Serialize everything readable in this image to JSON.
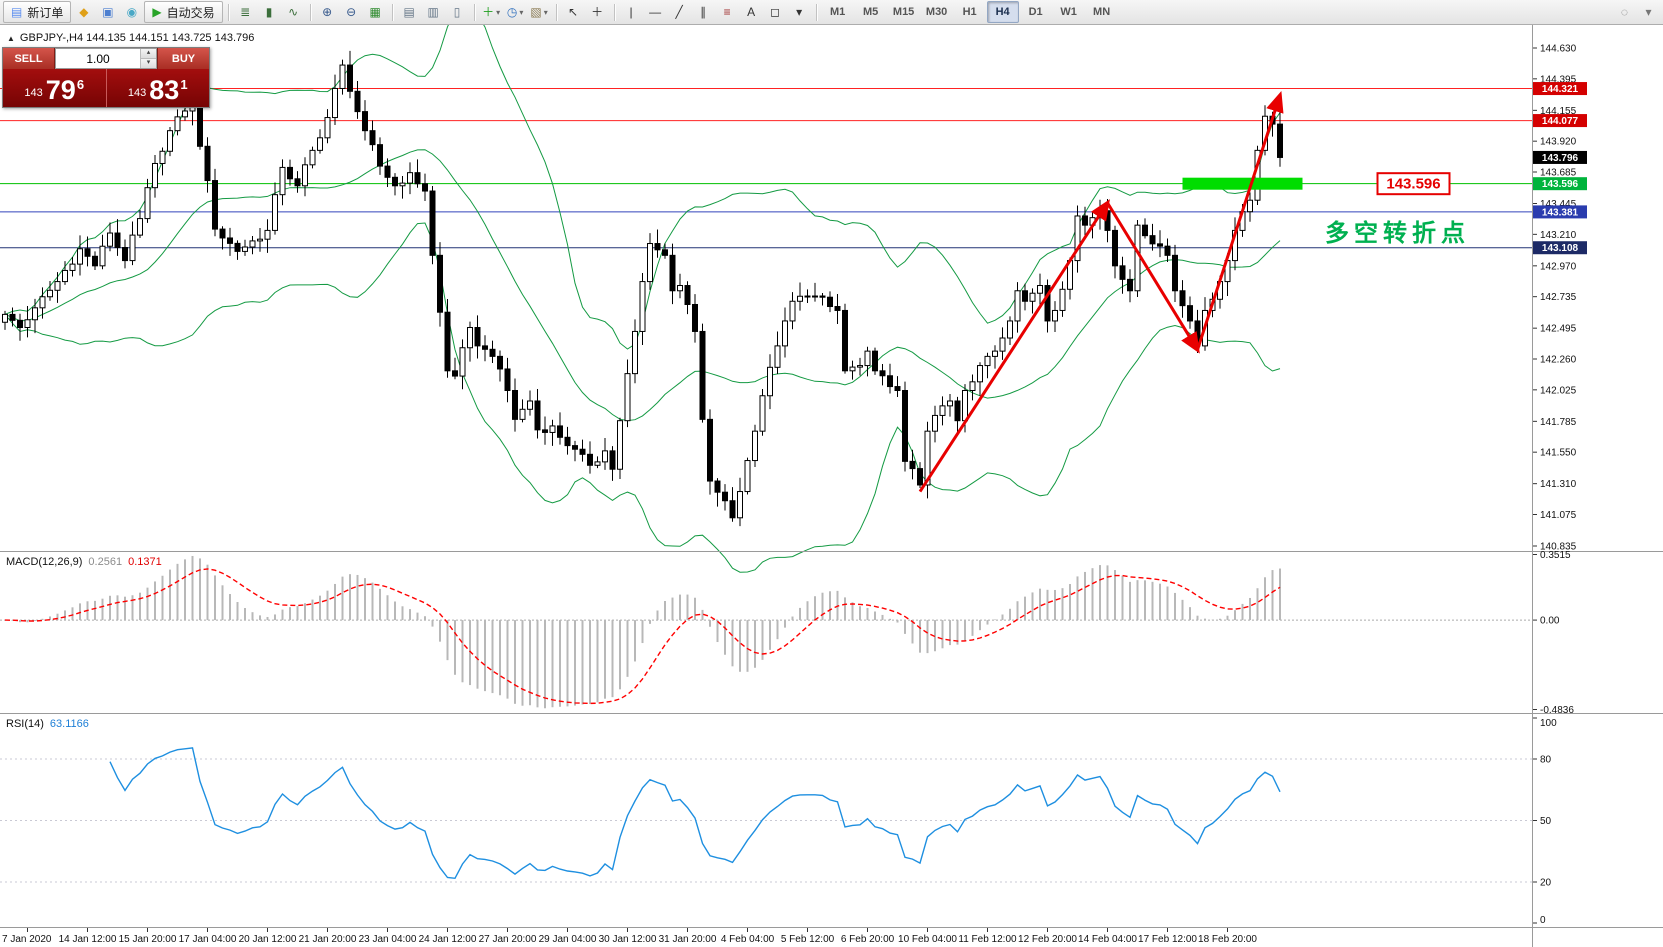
{
  "toolbar": {
    "active_timeframe": "H4",
    "groups": [
      [
        {
          "kind": "button",
          "name": "new-order-button",
          "glyph": "▤",
          "glyph_color": "#5b8def",
          "label": "新订单"
        },
        {
          "kind": "icon",
          "name": "metaeditor-icon",
          "glyph": "◆",
          "color": "#dfa018"
        },
        {
          "kind": "icon",
          "name": "market-watch-icon",
          "glyph": "▣",
          "color": "#4d7fd0"
        },
        {
          "kind": "icon",
          "name": "navigator-icon",
          "glyph": "◉",
          "color": "#49a8c6"
        },
        {
          "kind": "button",
          "name": "auto-trading-button",
          "glyph": "▶",
          "glyph_color": "#28a428",
          "label": "自动交易"
        }
      ],
      [
        {
          "kind": "icon",
          "name": "bar-chart-type-icon",
          "glyph": "≣",
          "color": "#3b6e3b"
        },
        {
          "kind": "icon",
          "name": "candlestick-chart-type-icon",
          "glyph": "▮",
          "color": "#3b6e3b"
        },
        {
          "kind": "icon",
          "name": "line-chart-type-icon",
          "glyph": "∿",
          "color": "#3b6e3b"
        }
      ],
      [
        {
          "kind": "icon",
          "name": "zoom-in-icon",
          "glyph": "⊕",
          "color": "#36598c"
        },
        {
          "kind": "icon",
          "name": "zoom-out-icon",
          "glyph": "⊖",
          "color": "#36598c"
        },
        {
          "kind": "icon",
          "name": "auto-arrange-icon",
          "glyph": "▦",
          "color": "#2e8b2e"
        }
      ],
      [
        {
          "kind": "icon",
          "name": "cascade-windows-icon",
          "glyph": "▤",
          "color": "#667788"
        },
        {
          "kind": "icon",
          "name": "tile-horizontally-icon",
          "glyph": "▥",
          "color": "#667788"
        },
        {
          "kind": "icon",
          "name": "tile-vertically-icon",
          "glyph": "▯",
          "color": "#667788"
        }
      ],
      [
        {
          "kind": "icon",
          "name": "add-indicator-icon",
          "glyph": "＋",
          "color": "#1f9e1f",
          "caret": true
        },
        {
          "kind": "icon",
          "name": "period-icon",
          "glyph": "◷",
          "color": "#2f6fbd",
          "caret": true
        },
        {
          "kind": "icon",
          "name": "template-icon",
          "glyph": "▧",
          "color": "#8a7a52",
          "caret": true
        }
      ],
      [
        {
          "kind": "icon",
          "name": "cursor-icon",
          "glyph": "↖",
          "color": "#333333"
        },
        {
          "kind": "icon",
          "name": "crosshair-icon",
          "glyph": "＋",
          "color": "#333333"
        }
      ],
      [
        {
          "kind": "icon",
          "name": "vertical-line-icon",
          "glyph": "|",
          "color": "#333333"
        },
        {
          "kind": "icon",
          "name": "horizontal-line-icon",
          "glyph": "—",
          "color": "#333333"
        },
        {
          "kind": "icon",
          "name": "trendline-icon",
          "glyph": "╱",
          "color": "#333333"
        },
        {
          "kind": "icon",
          "name": "channel-icon",
          "glyph": "∥",
          "color": "#333333"
        },
        {
          "kind": "icon",
          "name": "fibonacci-icon",
          "glyph": "≡",
          "color": "#a03030"
        },
        {
          "kind": "icon",
          "name": "text-tool-icon",
          "glyph": "A",
          "color": "#333333"
        },
        {
          "kind": "icon",
          "name": "arrows-tool-icon",
          "glyph": "◻",
          "color": "#333333"
        },
        {
          "kind": "icon",
          "name": "shapes-dropdown-icon",
          "glyph": "▾",
          "color": "#333333"
        }
      ],
      [
        {
          "kind": "tf",
          "name": "timeframe-m1-button",
          "label": "M1"
        },
        {
          "kind": "tf",
          "name": "timeframe-m5-button",
          "label": "M5"
        },
        {
          "kind": "tf",
          "name": "timeframe-m15-button",
          "label": "M15"
        },
        {
          "kind": "tf",
          "name": "timeframe-m30-button",
          "label": "M30"
        },
        {
          "kind": "tf",
          "name": "timeframe-h1-button",
          "label": "H1"
        },
        {
          "kind": "tf",
          "name": "timeframe-h4-button",
          "label": "H4"
        },
        {
          "kind": "tf",
          "name": "timeframe-d1-button",
          "label": "D1"
        },
        {
          "kind": "tf",
          "name": "timeframe-w1-button",
          "label": "W1"
        },
        {
          "kind": "tf",
          "name": "timeframe-mn-button",
          "label": "MN"
        }
      ],
      [
        {
          "kind": "icon",
          "name": "help-search-icon",
          "glyph": "◌",
          "color": "#777777"
        },
        {
          "kind": "icon",
          "name": "toolbar-options-icon",
          "glyph": "▾",
          "color": "#777777"
        }
      ]
    ]
  },
  "chart_header": {
    "marker": "▲",
    "title_text": "GBPJPY-,H4  144.135 144.151 143.725 143.796"
  },
  "one_click": {
    "sell_label": "SELL",
    "buy_label": "BUY",
    "volume": "1.00",
    "bid_int": "143",
    "bid_big": "79",
    "bid_sup": "6",
    "ask_int": "143",
    "ask_big": "83",
    "ask_sup": "1"
  },
  "chart_data": [
    {
      "type": "candlestick",
      "symbol": "GBPJPY-",
      "timeframe": "H4",
      "ohlc_current": {
        "open": "144.135",
        "high": "144.151",
        "low": "143.725",
        "close": "143.796"
      },
      "bars_count": 171,
      "label_start_bar": 3,
      "label_every": 8,
      "price_axis": [
        "144.630",
        "144.395",
        "144.155",
        "143.920",
        "143.685",
        "143.445",
        "143.210",
        "142.970",
        "142.735",
        "142.495",
        "142.260",
        "142.025",
        "141.785",
        "141.550",
        "141.310",
        "141.075",
        "140.835"
      ],
      "time_axis": [
        "7 Jan 2020",
        "14 Jan 12:00",
        "15 Jan 20:00",
        "17 Jan 04:00",
        "20 Jan 12:00",
        "21 Jan 20:00",
        "23 Jan 04:00",
        "24 Jan 12:00",
        "27 Jan 20:00",
        "29 Jan 04:00",
        "30 Jan 12:00",
        "31 Jan 20:00",
        "4 Feb 04:00",
        "5 Feb 12:00",
        "6 Feb 20:00",
        "10 Feb 04:00",
        "11 Feb 12:00",
        "12 Feb 20:00",
        "14 Feb 04:00",
        "17 Feb 12:00",
        "18 Feb 20:00"
      ],
      "bollinger": {
        "period": 20,
        "deviation": 2,
        "color": "#149a43"
      },
      "close_waypoints": [
        [
          0,
          142.6
        ],
        [
          2,
          142.5
        ],
        [
          4,
          142.65
        ],
        [
          7,
          142.85
        ],
        [
          10,
          143.1
        ],
        [
          12,
          142.97
        ],
        [
          14,
          143.22
        ],
        [
          16,
          143.01
        ],
        [
          18,
          143.33
        ],
        [
          20,
          143.75
        ],
        [
          22,
          144.0
        ],
        [
          24,
          144.15
        ],
        [
          25,
          144.19
        ],
        [
          27,
          143.62
        ],
        [
          28,
          143.25
        ],
        [
          31,
          143.08
        ],
        [
          33,
          143.16
        ],
        [
          35,
          143.24
        ],
        [
          37,
          143.72
        ],
        [
          39,
          143.58
        ],
        [
          41,
          143.85
        ],
        [
          43,
          144.1
        ],
        [
          45,
          144.5
        ],
        [
          46,
          144.3
        ],
        [
          48,
          144.0
        ],
        [
          50,
          143.73
        ],
        [
          52,
          143.58
        ],
        [
          54,
          143.68
        ],
        [
          56,
          143.54
        ],
        [
          57,
          143.05
        ],
        [
          59,
          142.17
        ],
        [
          60,
          142.13
        ],
        [
          62,
          142.5
        ],
        [
          63,
          142.36
        ],
        [
          65,
          142.28
        ],
        [
          67,
          142.02
        ],
        [
          68,
          141.8
        ],
        [
          70,
          141.94
        ],
        [
          71,
          141.72
        ],
        [
          73,
          141.75
        ],
        [
          75,
          141.6
        ],
        [
          78,
          141.45
        ],
        [
          80,
          141.56
        ],
        [
          81,
          141.42
        ],
        [
          82,
          141.79
        ],
        [
          84,
          142.47
        ],
        [
          85,
          142.85
        ],
        [
          86,
          143.14
        ],
        [
          88,
          143.05
        ],
        [
          89,
          142.78
        ],
        [
          90,
          142.82
        ],
        [
          92,
          142.47
        ],
        [
          93,
          141.8
        ],
        [
          94,
          141.33
        ],
        [
          96,
          141.18
        ],
        [
          97,
          141.05
        ],
        [
          98,
          141.25
        ],
        [
          100,
          141.71
        ],
        [
          101,
          141.98
        ],
        [
          103,
          142.36
        ],
        [
          104,
          142.55
        ],
        [
          105,
          142.7
        ],
        [
          107,
          142.74
        ],
        [
          108,
          142.74
        ],
        [
          110,
          142.66
        ],
        [
          111,
          142.63
        ],
        [
          112,
          142.17
        ],
        [
          114,
          142.21
        ],
        [
          115,
          142.32
        ],
        [
          116,
          142.17
        ],
        [
          118,
          142.05
        ],
        [
          119,
          142.02
        ],
        [
          120,
          141.48
        ],
        [
          122,
          141.3
        ],
        [
          123,
          141.71
        ],
        [
          124,
          141.83
        ],
        [
          126,
          141.94
        ],
        [
          127,
          141.79
        ],
        [
          128,
          142.02
        ],
        [
          130,
          142.21
        ],
        [
          131,
          142.28
        ],
        [
          132,
          142.32
        ],
        [
          134,
          142.55
        ],
        [
          135,
          142.78
        ],
        [
          136,
          142.7
        ],
        [
          138,
          142.82
        ],
        [
          139,
          142.55
        ],
        [
          140,
          142.63
        ],
        [
          142,
          143.01
        ],
        [
          143,
          143.35
        ],
        [
          144,
          143.28
        ],
        [
          146,
          143.39
        ],
        [
          147,
          143.24
        ],
        [
          148,
          142.97
        ],
        [
          150,
          142.78
        ],
        [
          151,
          143.28
        ],
        [
          152,
          143.2
        ],
        [
          154,
          143.12
        ],
        [
          155,
          143.05
        ],
        [
          156,
          142.78
        ],
        [
          158,
          142.55
        ],
        [
          159,
          142.36
        ],
        [
          160,
          142.63
        ],
        [
          162,
          142.85
        ],
        [
          163,
          143.01
        ],
        [
          164,
          143.24
        ],
        [
          166,
          143.47
        ],
        [
          167,
          143.85
        ],
        [
          168,
          144.11
        ],
        [
          169,
          144.05
        ],
        [
          170,
          143.796
        ]
      ],
      "horizontal_lines": [
        {
          "price": 144.321,
          "label": "144.321",
          "color": "#ff2222",
          "tag": "#d40000"
        },
        {
          "price": 144.077,
          "label": "144.077",
          "color": "#ff2222",
          "tag": "#d40000"
        },
        {
          "price": 143.596,
          "label": "143.596",
          "color": "#00c000",
          "tag": "#00b43c"
        },
        {
          "price": 143.381,
          "label": "143.381",
          "color": "#3344bb",
          "tag": "#2a3cae"
        },
        {
          "price": 143.108,
          "label": "143.108",
          "color": "#223377",
          "tag": "#1d2a66"
        }
      ],
      "current_price": {
        "label": "143.796",
        "tag": "#000000"
      },
      "annotations": {
        "turning_point_text": "多空转折点",
        "turning_point": {
          "bar": 176,
          "price": 143.16,
          "color": "#00b050"
        },
        "price_label": {
          "text": "143.596",
          "bar": 183,
          "price": 143.596,
          "color": "#e60000"
        },
        "green_zone": {
          "from_bar": 157,
          "to_bar": 173,
          "price": 143.596,
          "color": "#00dd00"
        },
        "trend_arrows": {
          "color": "#e80000",
          "points": [
            [
              122,
              141.25
            ],
            [
              147,
              143.45
            ],
            [
              159,
              142.33
            ],
            [
              170,
              144.27
            ]
          ]
        }
      }
    },
    {
      "type": "bar",
      "name": "MACD",
      "label": "MACD(12,26,9)",
      "value_main": "0.2561",
      "value_signal": "0.1371",
      "scale_labels": [
        "0.3515",
        "0.00",
        "-0.4836"
      ],
      "histogram_color": "#b8b8b8",
      "signal_color": "#ff0000"
    },
    {
      "type": "line",
      "name": "RSI",
      "label": "RSI(14)",
      "value": "63.1166",
      "scale_labels": [
        "100",
        "80",
        "50",
        "20",
        "0"
      ],
      "levels": [
        80,
        50,
        20
      ],
      "line_color": "#1e8fe0"
    }
  ]
}
